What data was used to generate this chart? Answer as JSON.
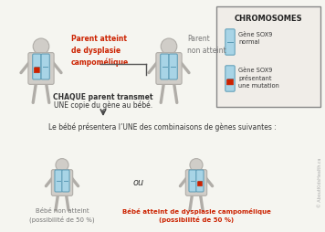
{
  "background_color": "#f5f5f0",
  "title_text": "CHROMOSOMES",
  "legend_box_color": "#f0ede8",
  "legend_border_color": "#888888",
  "chromosome_normal_color": "#a8d4e6",
  "chromosome_mutation_color": "#cc2200",
  "chromosome_outline_color": "#5a9ab5",
  "figure_color": "#d0cdc8",
  "figure_outline_color": "#b0ada8",
  "text_red": "#cc2200",
  "text_gray": "#777777",
  "text_dark": "#333333",
  "arrow_color": "#444444",
  "parent_affected_label": "Parent atteint\nde dysplasie\ncampomélique",
  "parent_normal_label": "Parent\nnon atteint",
  "middle_text1": "CHAQUE parent transmet",
  "middle_text2": "UNE copie du gène au bébé.",
  "bottom_intro": "Le bébé présentera l’UNE des combinaisons de gènes suivantes :",
  "or_text": "ou",
  "baby_normal_label": "Bébé non atteint\n(possibilité de 50 %)",
  "baby_affected_label": "Bébé atteint de dysplasie camp omélique\n(possibilité de 50 %)",
  "legend_normal_text": "Gène SOX9\nnormal",
  "legend_mutation_text": "Gène SOX9\nprésentant\nune mutation",
  "watermark": "© AboutKidsHealth.ca"
}
